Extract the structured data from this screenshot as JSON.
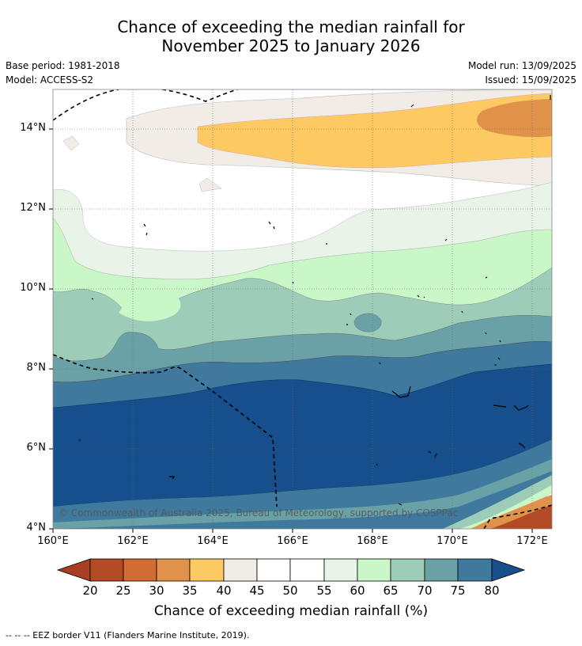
{
  "title": {
    "line1": "Chance of exceeding the median rainfall for",
    "line2": "November 2025 to January 2026"
  },
  "meta": {
    "base_period": "Base period: 1981-2018",
    "model": "Model: ACCESS-S2",
    "model_run": "Model run: 13/09/2025",
    "issued": "Issued: 15/09/2025"
  },
  "map": {
    "lat_labels": [
      "14°N",
      "12°N",
      "10°N",
      "8°N",
      "6°N",
      "4°N"
    ],
    "lon_labels": [
      "160°E",
      "162°E",
      "164°E",
      "166°E",
      "168°E",
      "170°E",
      "172°E"
    ],
    "copyright": "© Commonwealth of Australia 2025, Bureau of Meteorology, supported by COSPPac"
  },
  "colorbar": {
    "title": "Chance of exceeding median rainfall (%)",
    "labels": [
      "20",
      "25",
      "30",
      "35",
      "40",
      "45",
      "50",
      "55",
      "60",
      "65",
      "70",
      "75",
      "80"
    ],
    "colors": [
      "#a83f22",
      "#b34a26",
      "#cf6d35",
      "#e0924a",
      "#fdc963",
      "#f1ece6",
      "#ffffff",
      "#ffffff",
      "#e8f4e7",
      "#caf7c8",
      "#9dcdb8",
      "#6aa1a7",
      "#3f7a9e",
      "#164f8b"
    ]
  },
  "footnote": "--  --  -- EEZ border V11 (Flanders Marine Institute, 2019)."
}
